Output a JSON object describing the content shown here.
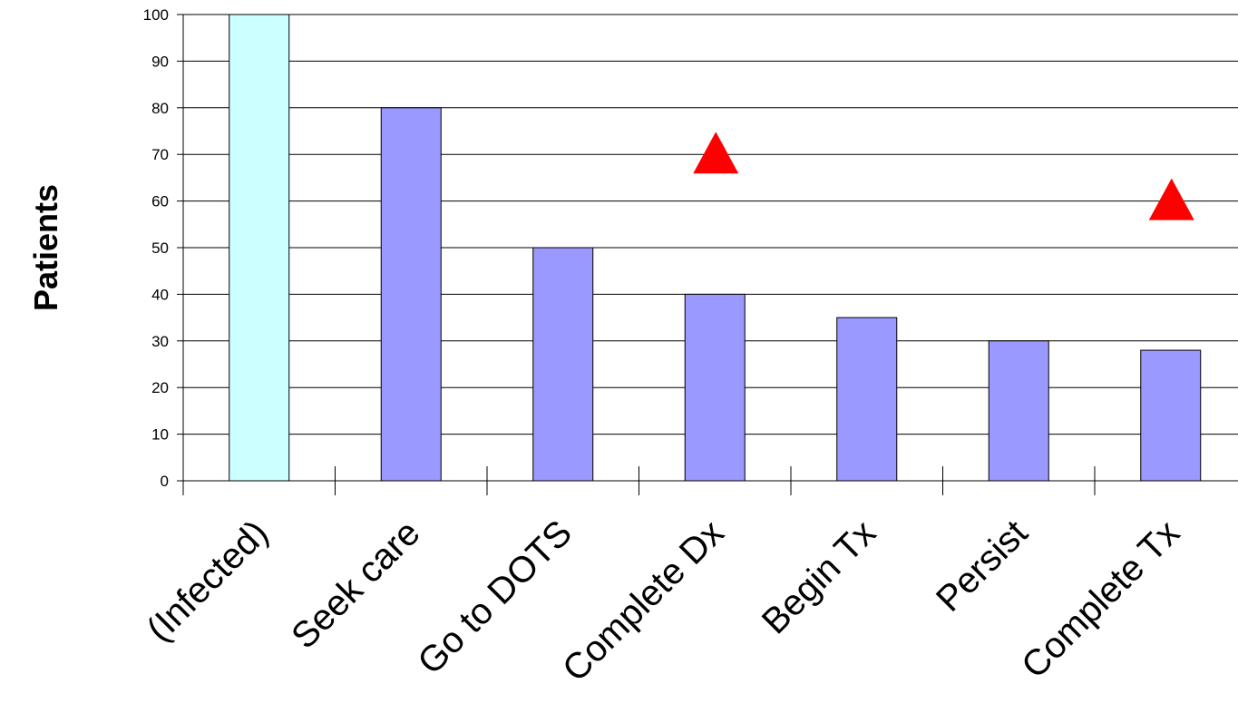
{
  "chart_data": {
    "type": "bar",
    "title": "",
    "xlabel": "",
    "ylabel": "Patients",
    "ylim": [
      0,
      100
    ],
    "y_ticks": [
      0,
      10,
      20,
      30,
      40,
      50,
      60,
      70,
      80,
      90,
      100
    ],
    "grid": "horizontal",
    "categories": [
      "(Infected)",
      "Seek care",
      "Go to DOTS",
      "Complete Dx",
      "Begin Tx",
      "Persist",
      "Complete Tx"
    ],
    "values": [
      100,
      80,
      50,
      40,
      35,
      30,
      28
    ],
    "bar_colors": [
      "#CCFFFF",
      "#9999FF",
      "#9999FF",
      "#9999FF",
      "#9999FF",
      "#9999FF",
      "#9999FF"
    ],
    "markers": [
      {
        "category": "Complete Dx",
        "value": 70,
        "shape": "triangle",
        "color": "#FF0000"
      },
      {
        "category": "Complete Tx",
        "value": 60,
        "shape": "triangle",
        "color": "#FF0000"
      }
    ]
  }
}
